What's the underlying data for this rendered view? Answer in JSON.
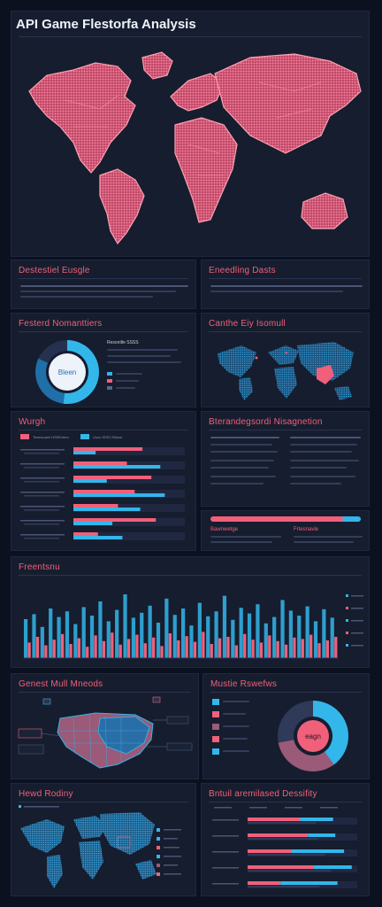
{
  "header": {
    "title": "API Game Flestorfa Analysis"
  },
  "panels": {
    "distribution": "Destestiel Eusgle",
    "funding": "Eneedling Dasts",
    "features": "Festerd Nomanttiers",
    "centre": "Canthe Eiy Isomull",
    "weigh": "Wurgh",
    "management": "Bterandegsordi Nisagnetion",
    "frequency": "Freentsnu",
    "network": "Genest Mull Mneods",
    "results": "Mustie Rswefws",
    "rating": "Hewd Rodiny",
    "capability": "Bntuil aremilased Dessifity"
  },
  "colors": {
    "background": "#0c1120",
    "panel": "#161d2e",
    "accent_red": "#f0607a",
    "accent_blue": "#33b6ea",
    "accent_mauve": "#9a5a78"
  },
  "features_donut": {
    "center_label": "Bleen",
    "legend_heading": "Resonitle SSSS"
  },
  "results_donut": {
    "center_label": "eagn"
  },
  "weigh_legend": [
    "Tewesoaml HSSEvtem",
    "Uouo ISSO Etiswe"
  ],
  "management_sub": [
    "Bawnwetge",
    "Frtesnavle"
  ],
  "chart_data": [
    {
      "type": "bar",
      "panel": "weigh",
      "orientation": "horizontal",
      "series": [
        {
          "name": "Tewesoaml HSSEvtem",
          "values": [
            62,
            48,
            70,
            55,
            40,
            74,
            22
          ]
        },
        {
          "name": "Uouo ISSO Etiswe",
          "values": [
            20,
            78,
            30,
            82,
            60,
            35,
            44
          ]
        }
      ],
      "categories": [
        "",
        "",
        "",
        "",
        "",
        "",
        ""
      ],
      "xlim": [
        0,
        100
      ]
    },
    {
      "type": "bar",
      "panel": "frequency",
      "series": [
        {
          "name": "blue",
          "values": [
            55,
            62,
            44,
            70,
            58,
            66,
            48,
            72,
            60,
            80,
            52,
            68,
            90,
            57,
            64,
            74,
            50,
            84,
            61,
            70,
            46,
            78,
            59,
            66,
            88,
            54,
            71,
            63,
            76,
            49,
            58,
            82,
            67,
            60,
            73,
            52,
            69,
            57
          ]
        },
        {
          "name": "red",
          "values": [
            22,
            30,
            18,
            26,
            34,
            20,
            28,
            16,
            32,
            24,
            36,
            19,
            27,
            33,
            21,
            29,
            17,
            35,
            25,
            31,
            23,
            37,
            20,
            28,
            30,
            18,
            34,
            26,
            22,
            32,
            24,
            19,
            29,
            27,
            33,
            21,
            25,
            30
          ]
        }
      ],
      "ylim": [
        0,
        100
      ]
    },
    {
      "type": "bar",
      "panel": "capability",
      "orientation": "horizontal",
      "categories": [
        "",
        "",
        "",
        "",
        ""
      ],
      "series": [
        {
          "name": "red",
          "values": [
            48,
            55,
            40,
            60,
            30
          ]
        },
        {
          "name": "blue",
          "values": [
            30,
            25,
            48,
            35,
            52
          ]
        }
      ],
      "xlim": [
        0,
        100
      ]
    },
    {
      "type": "pie",
      "panel": "features",
      "values": [
        52,
        30,
        18
      ],
      "colors": [
        "#33b6ea",
        "#1f6fa8",
        "#24314f"
      ]
    },
    {
      "type": "pie",
      "panel": "results",
      "values": [
        40,
        32,
        28
      ],
      "colors": [
        "#33b6ea",
        "#9a5a78",
        "#2e3a58"
      ]
    }
  ]
}
